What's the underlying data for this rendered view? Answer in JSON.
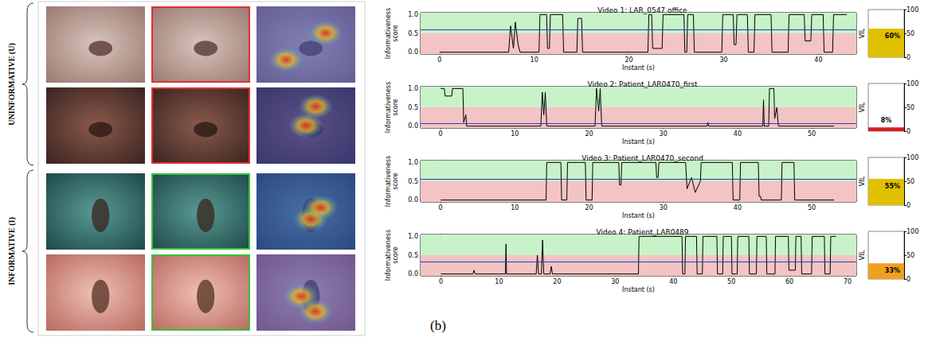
{
  "figure": {
    "groups": [
      {
        "label": "UNINFORMATIVE (U)",
        "color": "#e03030"
      },
      {
        "label": "INFORMATIVE (I)",
        "color": "#3cc03c"
      }
    ],
    "panel_label": "(b)"
  },
  "chart_data": [
    {
      "type": "line",
      "title": "Video 1: LAR_0547 office",
      "x_label": "Instant (s)",
      "y_label": "Informativeness score",
      "color": "#000000",
      "x": [
        0,
        7.3,
        7.5,
        7.8,
        8.0,
        8.3,
        8.5,
        10.5,
        10.6,
        11.3,
        11.4,
        11.6,
        11.7,
        13.0,
        13.1,
        14.5,
        14.6,
        15.0,
        15.1,
        22.0,
        22.1,
        22.4,
        22.5,
        23.5,
        23.6,
        25.8,
        25.9,
        26.1,
        26.2,
        26.8,
        26.9,
        29.8,
        29.9,
        31.0,
        31.1,
        31.3,
        31.4,
        32.5,
        32.6,
        33.2,
        33.3,
        35.0,
        35.1,
        36.8,
        36.9,
        38.5,
        38.6,
        39.2,
        39.3,
        40.5,
        40.6,
        41.5,
        41.6,
        43.0
      ],
      "values": [
        0,
        0,
        0.7,
        0.1,
        0.8,
        0.2,
        0,
        0,
        1,
        1,
        0.1,
        0.1,
        1,
        1,
        0,
        0,
        0.9,
        0.9,
        0,
        0,
        1,
        1,
        0.1,
        0.1,
        1,
        1,
        0,
        0,
        1,
        1,
        0,
        0,
        1,
        1,
        0.2,
        0.2,
        1,
        1,
        0,
        0,
        1,
        1,
        0,
        0,
        1,
        1,
        0.3,
        0.3,
        1,
        1,
        0,
        0,
        1,
        1
      ],
      "xlim": [
        -2,
        44
      ],
      "xticks": [
        0,
        10,
        20,
        30,
        40
      ],
      "ylim": [
        -0.05,
        1.05
      ],
      "yticks": [
        {
          "value": 0,
          "label": "0.0"
        },
        {
          "value": 0.5,
          "label": "0.5"
        },
        {
          "value": 1,
          "label": "1.0"
        }
      ],
      "bands": [
        {
          "from": -0.05,
          "to": 0.5,
          "color": "#f4c4c4"
        },
        {
          "from": 0.5,
          "to": 1.05,
          "color": "#c8f2c8"
        }
      ],
      "mean_line": {
        "value": 0.6,
        "color": "#2040c0"
      }
    },
    {
      "type": "bar",
      "y_label": "VIL",
      "categories": [
        null
      ],
      "values": [
        60
      ],
      "value_labels": [
        "60%"
      ],
      "color": "#e0c000",
      "ylim": [
        0,
        100
      ],
      "yticks": [
        0,
        50,
        100
      ],
      "data_labels": true
    },
    {
      "type": "line",
      "title": "Video 2: Patient_LAR0470_first",
      "x_label": "Instant (s)",
      "y_label": "Informativeness score",
      "color": "#000000",
      "x": [
        0,
        0.5,
        0.6,
        1.5,
        1.6,
        3.0,
        3.1,
        3.4,
        3.5,
        13.5,
        13.7,
        13.9,
        14.1,
        14.3,
        20.8,
        21.0,
        21.3,
        21.5,
        21.7,
        35.9,
        36.0,
        36.1,
        43.4,
        43.5,
        43.6,
        44.2,
        44.3,
        44.9,
        45.0,
        45.3,
        45.5,
        53.0
      ],
      "values": [
        1,
        1,
        0.8,
        0.8,
        1,
        1,
        0.1,
        0.3,
        0,
        0,
        0.9,
        0.3,
        0.9,
        0,
        0,
        1,
        0.4,
        1,
        0,
        0,
        0.1,
        0,
        0,
        0.7,
        0,
        0,
        1,
        1,
        0.2,
        0.5,
        0,
        0
      ],
      "xlim": [
        -2.7,
        56
      ],
      "xticks": [
        0,
        10,
        20,
        30,
        40,
        50
      ],
      "ylim": [
        -0.05,
        1.05
      ],
      "yticks": [
        {
          "value": 0,
          "label": "0.0"
        },
        {
          "value": 0.5,
          "label": "0.5"
        },
        {
          "value": 1,
          "label": "1.0"
        }
      ],
      "bands": [
        {
          "from": -0.05,
          "to": 0.5,
          "color": "#f4c4c4"
        },
        {
          "from": 0.5,
          "to": 1.05,
          "color": "#c8f2c8"
        }
      ],
      "mean_line": {
        "value": 0.08,
        "color": "#2040c0"
      }
    },
    {
      "type": "bar",
      "y_label": "VIL",
      "categories": [
        null
      ],
      "values": [
        8
      ],
      "value_labels": [
        "8%"
      ],
      "color": "#d62020",
      "ylim": [
        0,
        100
      ],
      "yticks": [
        0,
        50,
        100
      ],
      "data_labels": true
    },
    {
      "type": "line",
      "title": "Video 3: Patient_LAR0470_second",
      "x_label": "Instant (s)",
      "y_label": "Informativeness score",
      "color": "#000000",
      "x": [
        0,
        14.2,
        14.3,
        16.2,
        16.3,
        17.0,
        17.1,
        19.5,
        19.6,
        20.4,
        20.5,
        24.0,
        24.1,
        24.3,
        24.4,
        29.0,
        29.1,
        29.3,
        29.4,
        33.0,
        33.2,
        33.8,
        34.3,
        35.0,
        35.1,
        39.3,
        39.4,
        40.3,
        40.4,
        42.8,
        42.9,
        43.1,
        43.2,
        45.9,
        46.0,
        47.6,
        47.7,
        53.0
      ],
      "values": [
        0,
        0,
        1,
        1,
        0,
        0,
        1,
        1,
        0,
        0,
        1,
        1,
        0.4,
        0.4,
        1,
        1,
        0.6,
        0.6,
        1,
        1,
        0.3,
        0.6,
        0.2,
        0.5,
        1,
        1,
        0,
        0,
        1,
        1,
        0.1,
        0.1,
        0,
        0,
        1,
        1,
        0,
        0
      ],
      "xlim": [
        -2.7,
        56
      ],
      "xticks": [
        0,
        10,
        20,
        30,
        40,
        50
      ],
      "ylim": [
        -0.05,
        1.05
      ],
      "yticks": [
        {
          "value": 0,
          "label": "0.0"
        },
        {
          "value": 0.5,
          "label": "0.5"
        },
        {
          "value": 1,
          "label": "1.0"
        }
      ],
      "bands": [
        {
          "from": -0.05,
          "to": 0.5,
          "color": "#f4c4c4"
        },
        {
          "from": 0.5,
          "to": 1.05,
          "color": "#c8f2c8"
        }
      ],
      "mean_line": {
        "value": 0.55,
        "color": "#2040c0"
      }
    },
    {
      "type": "bar",
      "y_label": "VIL",
      "categories": [
        null
      ],
      "values": [
        55
      ],
      "value_labels": [
        "55%"
      ],
      "color": "#e0c000",
      "ylim": [
        0,
        100
      ],
      "yticks": [
        0,
        50,
        100
      ],
      "data_labels": true
    },
    {
      "type": "line",
      "title": "Video 4: Patient_LAR0489",
      "x_label": "Instant (s)",
      "y_label": "Informativeness score",
      "color": "#000000",
      "x": [
        0,
        5.5,
        5.7,
        5.9,
        11.1,
        11.2,
        11.3,
        16.4,
        16.6,
        16.8,
        17.3,
        17.5,
        17.7,
        18.8,
        19.0,
        19.2,
        34.0,
        34.1,
        41.5,
        41.6,
        42.0,
        42.1,
        44.0,
        44.1,
        45.0,
        45.1,
        47.5,
        47.6,
        48.5,
        48.6,
        50.0,
        50.1,
        51.0,
        51.1,
        53.0,
        53.1,
        54.3,
        54.4,
        56.0,
        56.1,
        57.5,
        57.6,
        59.8,
        59.9,
        61.0,
        61.1,
        62.0,
        62.1,
        63.8,
        63.9,
        66.0,
        66.1,
        67.0,
        67.1,
        68.0
      ],
      "values": [
        0,
        0,
        0.1,
        0,
        0,
        0.8,
        0,
        0,
        0.5,
        0,
        0,
        0.9,
        0,
        0,
        0.2,
        0,
        0,
        1,
        1,
        0,
        0,
        1,
        1,
        0,
        0,
        1,
        1,
        0,
        0,
        1,
        1,
        0,
        0,
        1,
        1,
        0,
        0,
        1,
        1,
        0,
        0,
        1,
        1,
        0.1,
        0.1,
        1,
        1,
        0,
        0,
        1,
        1,
        0,
        0,
        1,
        1
      ],
      "xlim": [
        -3.5,
        71.5
      ],
      "xticks": [
        0,
        10,
        20,
        30,
        40,
        50,
        60,
        70
      ],
      "ylim": [
        -0.05,
        1.05
      ],
      "yticks": [
        {
          "value": 0,
          "label": "0.0"
        },
        {
          "value": 0.5,
          "label": "0.5"
        },
        {
          "value": 1,
          "label": "1.0"
        }
      ],
      "bands": [
        {
          "from": -0.05,
          "to": 0.5,
          "color": "#f4c4c4"
        },
        {
          "from": 0.5,
          "to": 1.05,
          "color": "#c8f2c8"
        }
      ],
      "mean_line": {
        "value": 0.33,
        "color": "#2040c0"
      }
    },
    {
      "type": "bar",
      "y_label": "VIL",
      "categories": [
        null
      ],
      "values": [
        33
      ],
      "value_labels": [
        "33%"
      ],
      "color": "#f0a020",
      "ylim": [
        0,
        100
      ],
      "yticks": [
        0,
        50,
        100
      ],
      "data_labels": true
    }
  ]
}
